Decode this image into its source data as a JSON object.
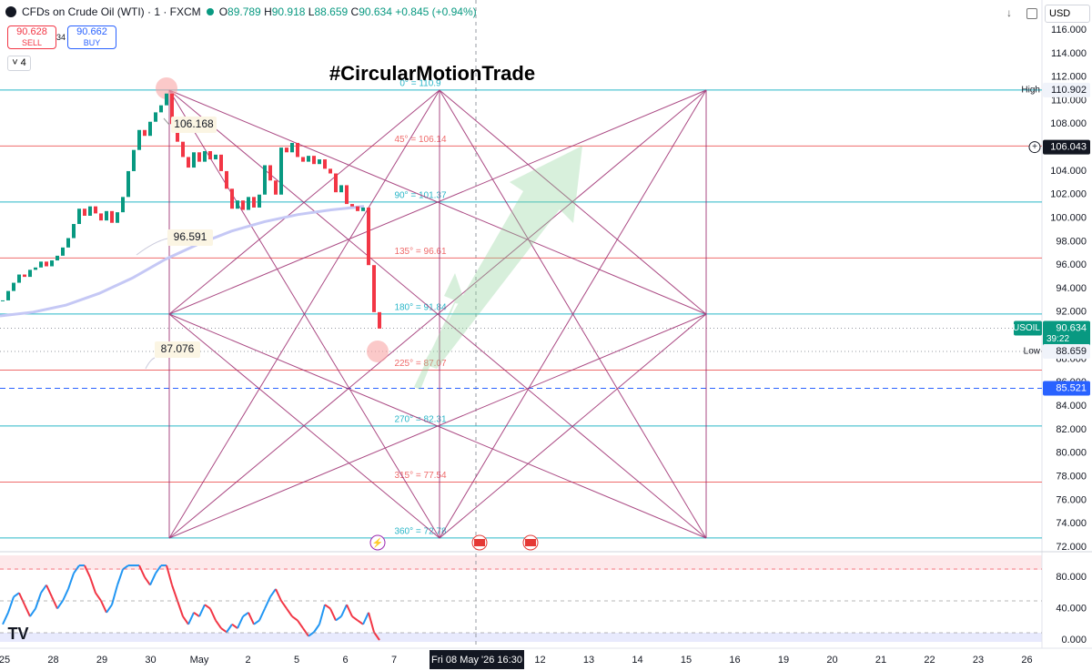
{
  "header": {
    "symbol": "CFDs on Crude Oil (WTI) · 1 · FXCM",
    "ohlc": [
      {
        "key": "O",
        "value": "89.789"
      },
      {
        "key": "H",
        "value": "90.918"
      },
      {
        "key": "L",
        "value": "88.659"
      },
      {
        "key": "C",
        "value": "90.634"
      }
    ],
    "change": "+0.845 (+0.94%)",
    "sell": {
      "price": "90.628",
      "label": "SELL"
    },
    "spread": "34",
    "buy": {
      "price": "90.662",
      "label": "BUY"
    },
    "indicator_count": "4",
    "currency": "USD"
  },
  "title": "#CircularMotionTrade",
  "price_ylim": [
    71.69,
    118.56
  ],
  "price_ticks": [
    {
      "value": 116,
      "label": "116.000"
    },
    {
      "value": 114,
      "label": "114.000"
    },
    {
      "value": 112,
      "label": "112.000"
    },
    {
      "value": 110,
      "label": "110.000"
    },
    {
      "value": 108,
      "label": "108.000"
    },
    {
      "value": 106,
      "label": "106.000"
    },
    {
      "value": 104,
      "label": "104.000"
    },
    {
      "value": 102,
      "label": "102.000"
    },
    {
      "value": 100,
      "label": "100.000"
    },
    {
      "value": 98,
      "label": "98.000"
    },
    {
      "value": 96,
      "label": "96.000"
    },
    {
      "value": 94,
      "label": "94.000"
    },
    {
      "value": 92,
      "label": "92.000"
    },
    {
      "value": 90,
      "label": "90.000"
    },
    {
      "value": 88,
      "label": "88.000"
    },
    {
      "value": 86,
      "label": "86.000"
    },
    {
      "value": 84,
      "label": "84.000"
    },
    {
      "value": 82,
      "label": "82.000"
    },
    {
      "value": 80,
      "label": "80.000"
    },
    {
      "value": 78,
      "label": "78.000"
    },
    {
      "value": 76,
      "label": "76.000"
    },
    {
      "value": 74,
      "label": "74.000"
    },
    {
      "value": 72,
      "label": "72.000"
    }
  ],
  "levels": [
    {
      "label": "0° = 110.9",
      "value": 110.9,
      "color": "#29b6c8"
    },
    {
      "label": "45° = 106.14",
      "value": 106.14,
      "color": "#ef6b6b"
    },
    {
      "label": "90° = 101.37",
      "value": 101.37,
      "color": "#29b6c8"
    },
    {
      "label": "135° = 96.61",
      "value": 96.61,
      "color": "#ef6b6b"
    },
    {
      "label": "180° = 91.84",
      "value": 91.84,
      "color": "#29b6c8"
    },
    {
      "label": "225° = 87.07",
      "value": 87.07,
      "color": "#ef6b6b"
    },
    {
      "label": "270° = 82.31",
      "value": 82.31,
      "color": "#29b6c8"
    },
    {
      "label": "315° = 77.54",
      "value": 77.54,
      "color": "#ef6b6b"
    },
    {
      "label": "360° = 72.78",
      "value": 72.78,
      "color": "#29b6c8"
    }
  ],
  "callouts": [
    "106.168",
    "96.591",
    "87.076"
  ],
  "price_markers": [
    {
      "tag": "High",
      "label": "110.902",
      "value": 110.902,
      "style": "plain"
    },
    {
      "label": "106.043",
      "value": 106.043,
      "style": "dark"
    },
    {
      "tag": "USOIL",
      "label": "90.634",
      "value": 90.634,
      "countdown": "39:22",
      "style": "green",
      "line": "dotted"
    },
    {
      "tag": "Low",
      "label": "88.659",
      "value": 88.659,
      "style": "plain",
      "line": "dotted"
    },
    {
      "label": "85.521",
      "value": 85.521,
      "style": "blue",
      "line": "dashed"
    }
  ],
  "closes": [
    93.0,
    93.8,
    94.5,
    95.2,
    95.0,
    95.6,
    95.8,
    96.3,
    95.9,
    96.4,
    96.8,
    97.5,
    98.3,
    99.5,
    100.8,
    100.2,
    101.0,
    100.4,
    99.8,
    100.6,
    99.6,
    100.5,
    101.8,
    104.0,
    105.8,
    107.5,
    107.0,
    108.2,
    109.0,
    109.6,
    110.6,
    108.0,
    106.5,
    105.2,
    104.3,
    105.6,
    104.8,
    105.7,
    105.0,
    105.4,
    104.0,
    102.5,
    100.8,
    101.5,
    100.7,
    101.8,
    100.9,
    102.0,
    104.5,
    103.2,
    102.0,
    106.0,
    105.6,
    106.4,
    105.2,
    104.8,
    105.3,
    104.6,
    105.0,
    104.2,
    103.8,
    102.2,
    102.8,
    101.2,
    101.0,
    100.6,
    100.9,
    96.0,
    92.0,
    90.6
  ],
  "moving_average": [
    91.68,
    92.0,
    92.6,
    93.6,
    94.9,
    96.5,
    97.8,
    98.9,
    99.7,
    100.3,
    100.7,
    101.0
  ],
  "rsi_ylim": [
    -5.8,
    107.8
  ],
  "rsi_ticks": [
    {
      "value": 80,
      "label": "80.000"
    },
    {
      "value": 40,
      "label": "40.000"
    },
    {
      "value": 0,
      "label": "0.000"
    }
  ],
  "rsi": [
    20,
    35,
    55,
    60,
    45,
    30,
    40,
    60,
    70,
    55,
    40,
    50,
    65,
    85,
    95,
    95,
    80,
    60,
    50,
    35,
    45,
    70,
    90,
    95,
    95,
    95,
    80,
    70,
    85,
    95,
    95,
    70,
    50,
    30,
    20,
    35,
    30,
    45,
    40,
    25,
    15,
    10,
    20,
    15,
    30,
    35,
    20,
    25,
    40,
    55,
    65,
    50,
    40,
    30,
    25,
    15,
    5,
    10,
    20,
    45,
    40,
    25,
    30,
    45,
    30,
    25,
    20,
    35,
    10,
    0
  ],
  "time_labels": [
    "25",
    "28",
    "29",
    "30",
    "May",
    "2",
    "5",
    "6",
    "7",
    null,
    null,
    "12",
    "13",
    "14",
    "15",
    "16",
    "19",
    "20",
    "21",
    "22",
    "23",
    "26"
  ],
  "crosshair_time": "Fri 08 May '26  16:30"
}
